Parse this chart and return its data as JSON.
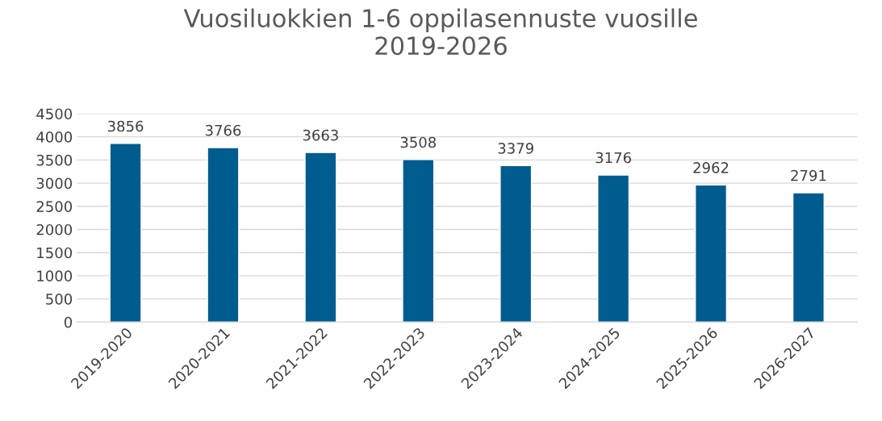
{
  "chart_data": {
    "type": "bar",
    "title": "Vuosiluokkien 1-6 oppilasennuste vuosille\n2019-2026",
    "categories": [
      "2019-2020",
      "2020-2021",
      "2021-2022",
      "2022-2023",
      "2023-2024",
      "2024-2025",
      "2025-2026",
      "2026-2027"
    ],
    "values": [
      3856,
      3766,
      3663,
      3508,
      3379,
      3176,
      2962,
      2791
    ],
    "color": "#005b8f",
    "ylim": [
      0,
      4500
    ],
    "yticks": [
      0,
      500,
      1000,
      1500,
      2000,
      2500,
      3000,
      3500,
      4000,
      4500
    ],
    "grid": "y",
    "data_labels": true
  }
}
